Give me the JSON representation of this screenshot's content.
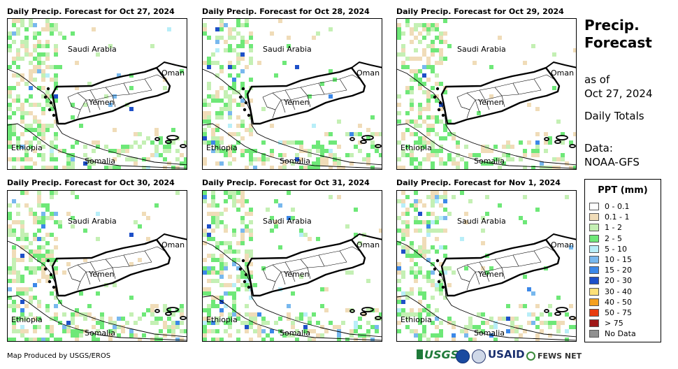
{
  "panels": [
    {
      "title": "Daily Precip. Forecast for Oct 27, 2024",
      "seed": 11,
      "blue": 0.05,
      "red": 0
    },
    {
      "title": "Daily Precip. Forecast for Oct 28, 2024",
      "seed": 23,
      "blue": 0.08,
      "red": 0
    },
    {
      "title": "Daily Precip. Forecast for Oct 29, 2024",
      "seed": 37,
      "blue": 0.04,
      "red": 0
    },
    {
      "title": "Daily Precip. Forecast for Oct 30, 2024",
      "seed": 41,
      "blue": 0.1,
      "red": 0.02
    },
    {
      "title": "Daily Precip. Forecast for Oct 31, 2024",
      "seed": 53,
      "blue": 0.12,
      "red": 0.03
    },
    {
      "title": "Daily Precip. Forecast for Nov 1, 2024",
      "seed": 67,
      "blue": 0.1,
      "red": 0.02
    }
  ],
  "map_labels": {
    "saudi": "Saudi Arabia",
    "oman": "Oman",
    "yemen": "Yemen",
    "ethiopia": "Ethiopia",
    "somalia": "Somalia"
  },
  "side": {
    "title_line1": "Precip.",
    "title_line2": "Forecast",
    "asof_line1": "as of",
    "asof_line2": "Oct 27, 2024",
    "totals": "Daily Totals",
    "data_line1": "Data:",
    "data_line2": "NOAA-GFS"
  },
  "legend": {
    "title": "PPT (mm)",
    "items": [
      {
        "label": "0 - 0.1",
        "color": "#ffffff"
      },
      {
        "label": "0.1 - 1",
        "color": "#f0dcb8"
      },
      {
        "label": "1 - 2",
        "color": "#c4f0b4"
      },
      {
        "label": "2 - 5",
        "color": "#6ee878"
      },
      {
        "label": "5 - 10",
        "color": "#b8eef8"
      },
      {
        "label": "10 - 15",
        "color": "#78b8ee"
      },
      {
        "label": "15 - 20",
        "color": "#3c88e8"
      },
      {
        "label": "20 - 30",
        "color": "#1e50c8"
      },
      {
        "label": "30 - 40",
        "color": "#fce078"
      },
      {
        "label": "40 - 50",
        "color": "#f4a020"
      },
      {
        "label": "50 - 75",
        "color": "#e83c10"
      },
      {
        "label": "> 75",
        "color": "#a01818"
      },
      {
        "label": "No Data",
        "color": "#909090"
      }
    ]
  },
  "credit": "Map Produced by USGS/EROS",
  "logos": {
    "usgs": "USGS",
    "usaid": "USAID",
    "fews": "FEWS NET"
  }
}
